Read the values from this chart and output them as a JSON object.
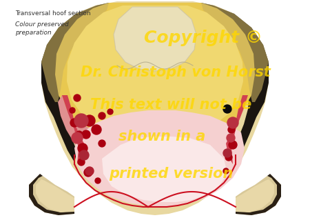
{
  "title_line1": "Transversal hoof section",
  "title_line2": "Colour preserved",
  "title_line3": "preparation",
  "watermark_line1": "Copyright ©",
  "watermark_line2": "Dr. Christoph von Horst",
  "watermark_line3": "This text will not be",
  "watermark_line4": "shown in a",
  "watermark_line5": "printed version",
  "watermark_color": "#FFD700",
  "watermark_alpha": 0.8,
  "bg_color": "#ffffff",
  "label_color": "#333333",
  "label_fontsize": 6.5,
  "fig_width": 4.5,
  "fig_height": 3.19,
  "colors": {
    "white_bg": "#ffffff",
    "hoof_wall_outer": "#c8b882",
    "hoof_wall_dark": "#1a1510",
    "hoof_wall_cream": "#e8d8a0",
    "cartilage_yellow": "#e8c850",
    "cartilage_light": "#f0d870",
    "tendon_transparent": "#e8e0c8",
    "tissue_red": "#d04050",
    "tissue_pink_dark": "#c86070",
    "tissue_pink_mid": "#e09090",
    "tissue_pink_light": "#f0b8b8",
    "cushion_pale": "#f5d0d0",
    "blood_dark_red": "#aa0010",
    "blood_bright_red": "#cc1020",
    "vein_black": "#0a0a0a",
    "sole_cream": "#d8c898",
    "sole_white": "#f0ead8"
  }
}
